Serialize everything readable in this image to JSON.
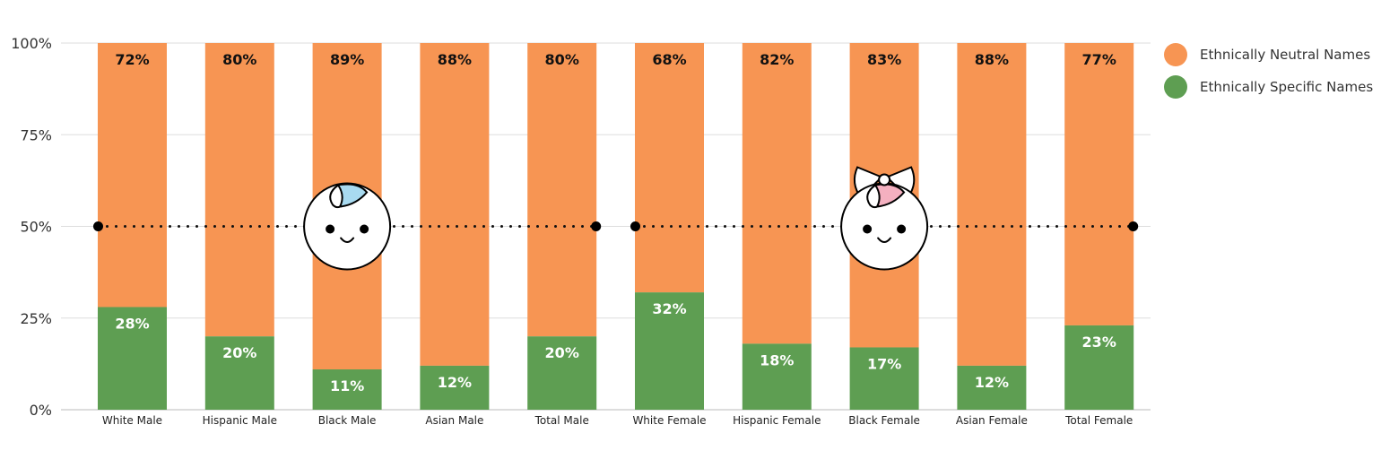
{
  "chart_data": {
    "type": "bar",
    "stacked": true,
    "categories": [
      "White Male",
      "Hispanic Male",
      "Black Male",
      "Asian Male",
      "Total Male",
      "White Female",
      "Hispanic Female",
      "Black Female",
      "Asian Female",
      "Total Female"
    ],
    "series": [
      {
        "name": "Ethnically Specific Names",
        "color": "#5e9e52",
        "values": [
          28,
          20,
          11,
          12,
          20,
          32,
          18,
          17,
          12,
          23
        ],
        "labels": [
          "28%",
          "20%",
          "11%",
          "12%",
          "20%",
          "32%",
          "18%",
          "17%",
          "12%",
          "23%"
        ]
      },
      {
        "name": "Ethnically Neutral Names",
        "color": "#f79553",
        "values": [
          72,
          80,
          89,
          88,
          80,
          68,
          82,
          83,
          88,
          77
        ],
        "labels": [
          "72%",
          "80%",
          "89%",
          "88%",
          "80%",
          "68%",
          "82%",
          "83%",
          "88%",
          "77%"
        ]
      }
    ],
    "y_ticks": [
      0,
      25,
      50,
      75,
      100
    ],
    "y_tick_labels": [
      "0%",
      "25%",
      "50%",
      "75%",
      "100%"
    ],
    "ylim": [
      0,
      100
    ],
    "reference_line": 50,
    "legend_position": "top-right",
    "grid": true
  },
  "legend": {
    "items": [
      {
        "label": "Ethnically Neutral Names",
        "color": "#f79553"
      },
      {
        "label": "Ethnically Specific Names",
        "color": "#5e9e52"
      }
    ]
  },
  "icons": {
    "male": "baby-boy-face-icon",
    "female": "baby-girl-face-icon",
    "male_hair_color": "#a8daf0",
    "female_hair_color": "#f4b0c0"
  }
}
